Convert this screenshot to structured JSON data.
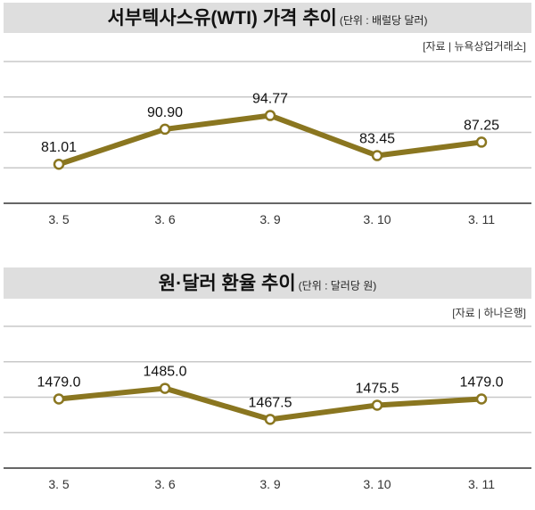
{
  "chart_data": [
    {
      "type": "line",
      "title": "서부텍사스유(WTI) 가격 추이",
      "unit": "(단위 : 배럴당 달러)",
      "source": "[자료 | 뉴욕상업거래소]",
      "categories": [
        "3. 5",
        "3. 6",
        "3. 9",
        "3. 10",
        "3. 11"
      ],
      "values": [
        81.01,
        90.9,
        94.77,
        83.45,
        87.25
      ],
      "labels": [
        "81.01",
        "90.90",
        "94.77",
        "83.45",
        "87.25"
      ],
      "ylim": [
        70,
        110
      ],
      "grid": true,
      "color": "#8a7620"
    },
    {
      "type": "line",
      "title": "원·달러 환율 추이",
      "unit": "(단위 : 달러당 원)",
      "source": "[자료 | 하나은행]",
      "categories": [
        "3. 5",
        "3. 6",
        "3. 9",
        "3. 10",
        "3. 11"
      ],
      "values": [
        1479.0,
        1485.0,
        1467.5,
        1475.5,
        1479.0
      ],
      "labels": [
        "1479.0",
        "1485.0",
        "1467.5",
        "1475.5",
        "1479.0"
      ],
      "ylim": [
        1440,
        1520
      ],
      "grid": true,
      "color": "#8a7620"
    }
  ]
}
